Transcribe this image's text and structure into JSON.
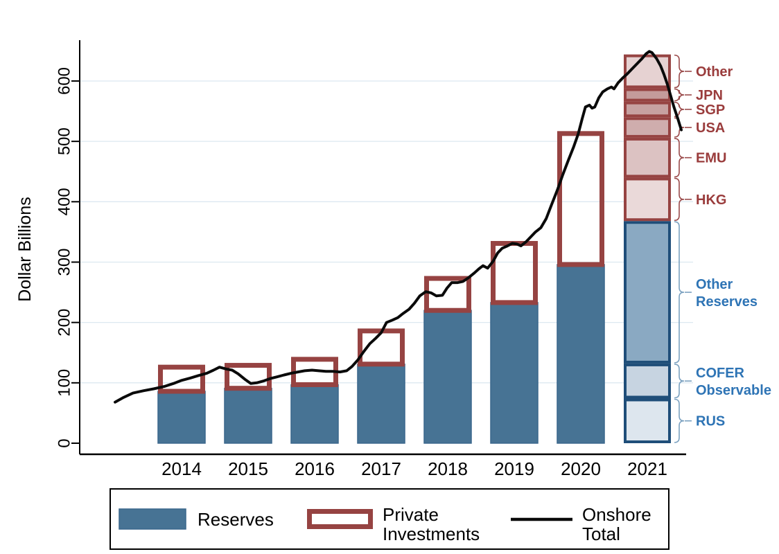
{
  "figure": {
    "background": "#ffffff"
  },
  "axes": {
    "y_title": "Dollar Billions",
    "y_ticks": [
      0,
      100,
      200,
      300,
      400,
      500,
      600
    ],
    "x_ticks": [
      "2014",
      "2015",
      "2016",
      "2017",
      "2018",
      "2019",
      "2020",
      "2021"
    ]
  },
  "colors": {
    "bar_blue": "#477394",
    "bar_blue_stroke": "#3a678c",
    "outline_red": "#964342",
    "line_black": "#0a0a0a",
    "grid": "#dce8f0",
    "axis": "#000000",
    "label_blue": "#2e74b5",
    "label_red": "#9a3c3c",
    "stack_blue_stroke": "#1f4e79",
    "brace_blue": "#7ba1c0",
    "brace_red": "#9a4a4a"
  },
  "chart_data": {
    "type": "combo",
    "title": "",
    "xlabel": "",
    "ylabel": "Dollar Billions",
    "ylim": [
      0,
      660
    ],
    "grid": "horizontal",
    "legend_position": "bottom",
    "categories": [
      "2014",
      "2015",
      "2016",
      "2017",
      "2018",
      "2019",
      "2020",
      "2021"
    ],
    "series": [
      {
        "name": "Reserves",
        "type": "bar",
        "values": [
          86,
          91,
          97,
          131,
          220,
          233,
          296
        ]
      },
      {
        "name": "Private Investments",
        "type": "bar-outline",
        "stacked_on": "Reserves",
        "values": [
          44,
          42,
          46,
          59,
          57,
          102,
          221
        ]
      },
      {
        "name": "Onshore Total",
        "type": "line",
        "points": [
          [
            2013.0,
            68
          ],
          [
            2013.13,
            76
          ],
          [
            2013.27,
            83
          ],
          [
            2013.43,
            87
          ],
          [
            2013.58,
            90
          ],
          [
            2013.74,
            94
          ],
          [
            2013.88,
            99
          ],
          [
            2014.0,
            104
          ],
          [
            2014.13,
            108
          ],
          [
            2014.25,
            112
          ],
          [
            2014.38,
            116
          ],
          [
            2014.48,
            121
          ],
          [
            2014.57,
            126
          ],
          [
            2014.67,
            123
          ],
          [
            2014.76,
            121
          ],
          [
            2014.85,
            115
          ],
          [
            2014.95,
            106
          ],
          [
            2015.04,
            99
          ],
          [
            2015.13,
            100
          ],
          [
            2015.23,
            103
          ],
          [
            2015.33,
            107
          ],
          [
            2015.44,
            110
          ],
          [
            2015.54,
            113
          ],
          [
            2015.65,
            116
          ],
          [
            2015.75,
            118
          ],
          [
            2015.85,
            120
          ],
          [
            2015.96,
            121
          ],
          [
            2016.06,
            120
          ],
          [
            2016.17,
            119
          ],
          [
            2016.27,
            119
          ],
          [
            2016.38,
            118
          ],
          [
            2016.48,
            120
          ],
          [
            2016.56,
            127
          ],
          [
            2016.65,
            138
          ],
          [
            2016.74,
            152
          ],
          [
            2016.83,
            165
          ],
          [
            2016.92,
            174
          ],
          [
            2017.0,
            183
          ],
          [
            2017.08,
            200
          ],
          [
            2017.17,
            204
          ],
          [
            2017.25,
            208
          ],
          [
            2017.33,
            215
          ],
          [
            2017.42,
            222
          ],
          [
            2017.5,
            232
          ],
          [
            2017.58,
            244
          ],
          [
            2017.67,
            251
          ],
          [
            2017.75,
            249
          ],
          [
            2017.83,
            244
          ],
          [
            2017.92,
            245
          ],
          [
            2017.99,
            257
          ],
          [
            2018.06,
            266
          ],
          [
            2018.15,
            266
          ],
          [
            2018.23,
            268
          ],
          [
            2018.31,
            274
          ],
          [
            2018.4,
            282
          ],
          [
            2018.47,
            289
          ],
          [
            2018.53,
            294
          ],
          [
            2018.6,
            290
          ],
          [
            2018.68,
            301
          ],
          [
            2018.75,
            315
          ],
          [
            2018.82,
            323
          ],
          [
            2018.9,
            327
          ],
          [
            2018.97,
            331
          ],
          [
            2019.04,
            330
          ],
          [
            2019.1,
            327
          ],
          [
            2019.18,
            334
          ],
          [
            2019.25,
            342
          ],
          [
            2019.32,
            350
          ],
          [
            2019.4,
            357
          ],
          [
            2019.48,
            372
          ],
          [
            2019.56,
            395
          ],
          [
            2019.65,
            420
          ],
          [
            2019.73,
            445
          ],
          [
            2019.81,
            468
          ],
          [
            2019.89,
            490
          ],
          [
            2019.96,
            512
          ],
          [
            2020.02,
            537
          ],
          [
            2020.07,
            557
          ],
          [
            2020.13,
            560
          ],
          [
            2020.17,
            555
          ],
          [
            2020.21,
            557
          ],
          [
            2020.27,
            572
          ],
          [
            2020.33,
            582
          ],
          [
            2020.4,
            587
          ],
          [
            2020.46,
            590
          ],
          [
            2020.5,
            587
          ],
          [
            2020.56,
            597
          ],
          [
            2020.63,
            605
          ],
          [
            2020.7,
            612
          ],
          [
            2020.77,
            620
          ],
          [
            2020.84,
            628
          ],
          [
            2020.92,
            637
          ],
          [
            2020.98,
            645
          ],
          [
            2021.03,
            649
          ],
          [
            2021.07,
            647
          ],
          [
            2021.14,
            637
          ],
          [
            2021.2,
            625
          ],
          [
            2021.25,
            611
          ],
          [
            2021.3,
            595
          ],
          [
            2021.35,
            576
          ],
          [
            2021.4,
            557
          ],
          [
            2021.46,
            537
          ],
          [
            2021.51,
            519
          ]
        ]
      }
    ],
    "note": "2021 bar shown as stacked breakdown with side labels",
    "breakdown_2021": {
      "total": 644,
      "reserves_segments": [
        {
          "label": "RUS",
          "label_lines": [
            "RUS"
          ],
          "value": 74,
          "fill": "#dde6ee"
        },
        {
          "label": "COFER Observable",
          "label_lines": [
            "COFER",
            "Observable"
          ],
          "value": 58,
          "fill": "#c7d4e1"
        },
        {
          "label": "Other Reserves",
          "label_lines": [
            "Other",
            "Reserves"
          ],
          "value": 236,
          "fill": "#8aa9c2"
        }
      ],
      "private_segments": [
        {
          "label": "HKG",
          "label_lines": [
            "HKG"
          ],
          "value": 72,
          "fill": "#ead9d9"
        },
        {
          "label": "EMU",
          "label_lines": [
            "EMU"
          ],
          "value": 66,
          "fill": "#dcc2c2"
        },
        {
          "label": "USA",
          "label_lines": [
            "USA"
          ],
          "value": 34,
          "fill": "#cfadad"
        },
        {
          "label": "SGP",
          "label_lines": [
            "SGP"
          ],
          "value": 26,
          "fill": "#c7a1a1"
        },
        {
          "label": "JPN",
          "label_lines": [
            "JPN"
          ],
          "value": 22,
          "fill": "#c49b9b"
        },
        {
          "label": "Other",
          "label_lines": [
            "Other"
          ],
          "value": 56,
          "fill": "#e6d2d2"
        }
      ]
    }
  },
  "legend": {
    "items": [
      {
        "label_lines": [
          "Reserves"
        ],
        "marker": "filled-bar"
      },
      {
        "label_lines": [
          "Private",
          "Investments"
        ],
        "marker": "outline-bar"
      },
      {
        "label_lines": [
          "Onshore",
          "Total"
        ],
        "marker": "line"
      }
    ]
  }
}
